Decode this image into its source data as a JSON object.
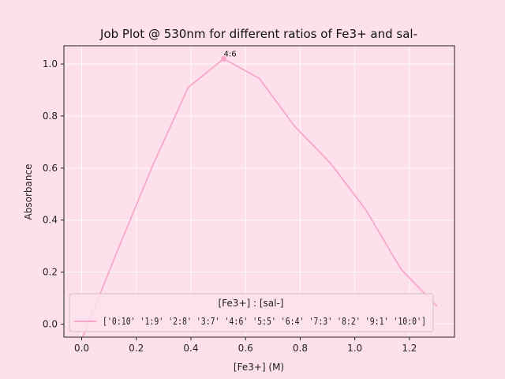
{
  "chart_data": {
    "type": "line",
    "title": "Job Plot @ 530nm for different ratios of Fe3+ and sal-",
    "xlabel": "[Fe3+] (M)",
    "ylabel": "Absorbance",
    "xlim": [
      -0.065,
      1.365
    ],
    "ylim": [
      -0.05,
      1.07
    ],
    "xticks": [
      0.0,
      0.2,
      0.4,
      0.6,
      0.8,
      1.0,
      1.2
    ],
    "xtick_labels": [
      "0.0",
      "0.2",
      "0.4",
      "0.6",
      "0.8",
      "1.0",
      "1.2"
    ],
    "yticks": [
      0.0,
      0.2,
      0.4,
      0.6,
      0.8,
      1.0
    ],
    "ytick_labels": [
      "0.0",
      "0.2",
      "0.4",
      "0.6",
      "0.8",
      "1.0"
    ],
    "grid": true,
    "series": [
      {
        "label": "['0:10' '1:9' '2:8' '3:7' '4:6' '5:5' '6:4' '7:3' '8:2' '9:1' '10:0']",
        "color": "#f7a8c8",
        "x": [
          0.0,
          0.13,
          0.26,
          0.39,
          0.52,
          0.65,
          0.78,
          0.91,
          1.04,
          1.17,
          1.3
        ],
        "y": [
          -0.06,
          0.28,
          0.61,
          0.91,
          1.02,
          0.945,
          0.76,
          0.62,
          0.44,
          0.21,
          0.07
        ]
      }
    ],
    "annotation": {
      "text": "4:6",
      "x": 0.52,
      "y": 1.02
    },
    "legend": {
      "title": "[Fe3+] : [sal-]",
      "position": "lower center"
    }
  }
}
